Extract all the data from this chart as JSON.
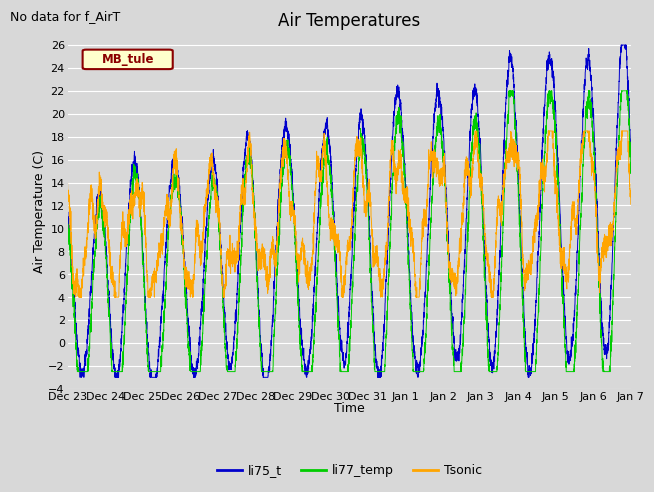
{
  "title": "Air Temperatures",
  "ylabel": "Air Temperature (C)",
  "xlabel": "Time",
  "top_left_text": "No data for f_AirT",
  "legend_box_text": "MB_tule",
  "ylim": [
    -4,
    27
  ],
  "yticks": [
    -4,
    -2,
    0,
    2,
    4,
    6,
    8,
    10,
    12,
    14,
    16,
    18,
    20,
    22,
    24,
    26
  ],
  "series": {
    "li75_t": {
      "color": "#0000cc",
      "label": "li75_t"
    },
    "li77_temp": {
      "color": "#00cc00",
      "label": "li77_temp"
    },
    "Tsonic": {
      "color": "#ffa500",
      "label": "Tsonic"
    }
  },
  "bg_color": "#d8d8d8",
  "grid_color": "#ffffff",
  "title_fontsize": 12,
  "axis_label_fontsize": 9,
  "tick_fontsize": 8,
  "legend_fontsize": 9,
  "x_tick_labels": [
    "Dec 23",
    "Dec 24",
    "Dec 25",
    "Dec 26",
    "Dec 27",
    "Dec 28",
    "Dec 29",
    "Dec 30",
    "Dec 31",
    "Jan 1",
    "Jan 2",
    "Jan 3",
    "Jan 4",
    "Jan 5",
    "Jan 6",
    "Jan 7"
  ],
  "figsize": [
    6.4,
    4.8
  ],
  "dpi": 100
}
